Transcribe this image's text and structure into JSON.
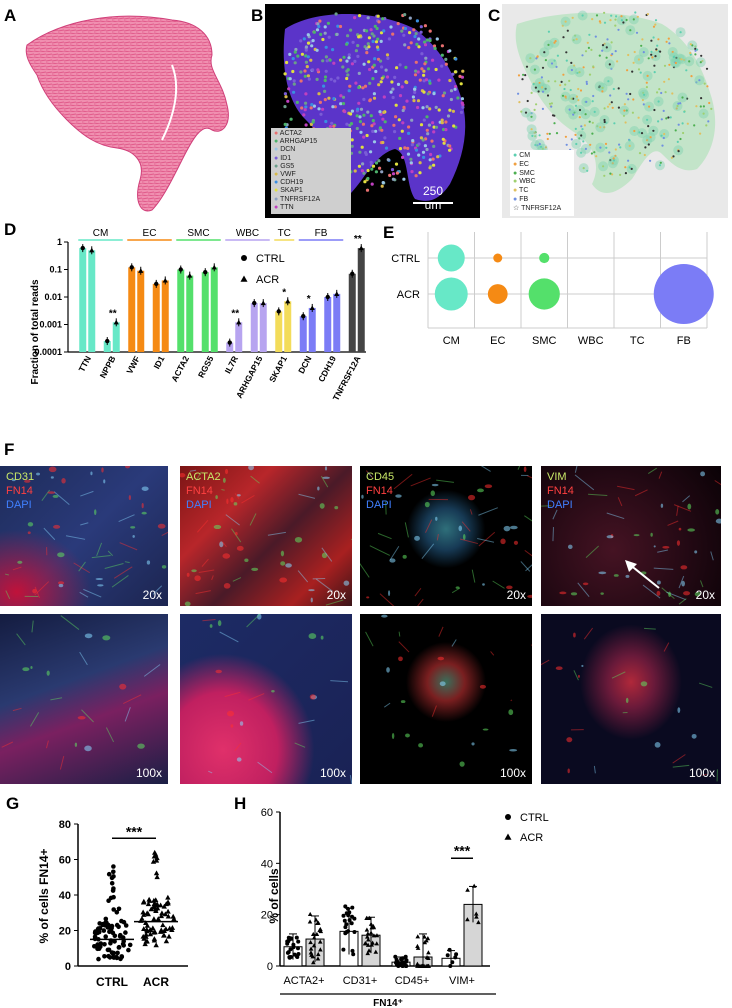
{
  "panel_labels": {
    "a": "A",
    "b": "B",
    "c": "C",
    "d": "D",
    "e": "E",
    "f": "F",
    "g": "G",
    "h": "H"
  },
  "panel_b": {
    "legend": [
      "ACTA2",
      "ARHGAP15",
      "DCN",
      "ID1",
      "GS5",
      "VWF",
      "CDH19",
      "SKAP1",
      "TNFRSF12A",
      "TTN"
    ],
    "legend_colors": [
      "#e87070",
      "#4db36b",
      "#9ac7e6",
      "#7a5cd6",
      "#6a9e8a",
      "#d6b84a",
      "#3a8ee0",
      "#e0e040",
      "#8da0c0",
      "#c040c0"
    ],
    "scale": "250 um"
  },
  "panel_c": {
    "legend": [
      "CM",
      "EC",
      "SMC",
      "WBC",
      "TC",
      "FB",
      "TNFRSF12A"
    ],
    "legend_colors": [
      "#5ccfb0",
      "#f0a040",
      "#4caf50",
      "#9fd070",
      "#e0c060",
      "#7090e0",
      "#333333"
    ]
  },
  "colors": {
    "CM": "#67e8c7",
    "EC": "#f58a14",
    "SMC": "#54e06b",
    "WBC": "#c9b6f0",
    "TC": "#f3dc5a",
    "FB": "#7b7cf6"
  },
  "chart_data": [
    {
      "id": "D",
      "type": "bar",
      "ylabel": "Fraction of total reads",
      "yscale": "log",
      "ylim": [
        0.0001,
        1
      ],
      "yticks": [
        "1",
        "0.1",
        "0.01",
        "0.001",
        "0.0001"
      ],
      "groups": [
        {
          "label": "CM",
          "genes": [
            "TTN",
            "NPPB"
          ]
        },
        {
          "label": "EC",
          "genes": [
            "VWF",
            "ID1"
          ]
        },
        {
          "label": "SMC",
          "genes": [
            "ACTA2",
            "RGS5"
          ]
        },
        {
          "label": "WBC",
          "genes": [
            "IL7R",
            "ARHGAP15"
          ]
        },
        {
          "label": "TC",
          "genes": [
            "SKAP1"
          ]
        },
        {
          "label": "FB",
          "genes": [
            "DCN",
            "CDH19"
          ]
        }
      ],
      "categories": [
        "TTN",
        "NPPB",
        "VWF",
        "ID1",
        "ACTA2",
        "RGS5",
        "IL7R",
        "ARHGAP15",
        "SKAP1",
        "DCN",
        "CDH19",
        "TNFRSF12A"
      ],
      "bar_colors": [
        "#67e8c7",
        "#67e8c7",
        "#f58a14",
        "#f58a14",
        "#54e06b",
        "#54e06b",
        "#b7a4f0",
        "#b7a4f0",
        "#f3dc5a",
        "#7b7cf6",
        "#7b7cf6",
        "#444444"
      ],
      "series": [
        {
          "name": "CTRL",
          "values": [
            0.6,
            0.00025,
            0.12,
            0.03,
            0.1,
            0.08,
            0.00022,
            0.006,
            0.003,
            0.002,
            0.01,
            0.07
          ]
        },
        {
          "name": "ACR",
          "values": [
            0.5,
            0.0012,
            0.09,
            0.04,
            0.06,
            0.12,
            0.0012,
            0.006,
            0.007,
            0.004,
            0.013,
            0.6
          ]
        }
      ],
      "significance": [
        {
          "category": "NPPB",
          "label": "**"
        },
        {
          "category": "IL7R",
          "label": "**"
        },
        {
          "category": "SKAP1",
          "label": "*"
        },
        {
          "category": "DCN",
          "label": "*"
        },
        {
          "category": "TNFRSF12A",
          "label": "**"
        }
      ],
      "legend": [
        "CTRL",
        "ACR"
      ]
    },
    {
      "id": "E",
      "type": "scatter",
      "categories": [
        "CM",
        "EC",
        "SMC",
        "WBC",
        "TC",
        "FB"
      ],
      "rows": [
        "CTRL",
        "ACR"
      ],
      "points": [
        {
          "row": "CTRL",
          "col": "CM",
          "size": 0.45
        },
        {
          "row": "CTRL",
          "col": "EC",
          "size": 0.15
        },
        {
          "row": "CTRL",
          "col": "SMC",
          "size": 0.17
        },
        {
          "row": "ACR",
          "col": "CM",
          "size": 0.55
        },
        {
          "row": "ACR",
          "col": "EC",
          "size": 0.33
        },
        {
          "row": "ACR",
          "col": "SMC",
          "size": 0.52
        },
        {
          "row": "ACR",
          "col": "FB",
          "size": 1.0
        }
      ]
    },
    {
      "id": "G",
      "type": "scatter",
      "ylabel": "% of cells FN14+",
      "ylim": [
        0,
        80
      ],
      "yticks": [
        "0",
        "20",
        "40",
        "60",
        "80"
      ],
      "categories": [
        "CTRL",
        "ACR"
      ],
      "medians": [
        15,
        25
      ],
      "significance": "***",
      "ctrl_n": 90,
      "acr_n": 80
    },
    {
      "id": "H",
      "type": "bar",
      "ylabel": "% of cells",
      "ylim": [
        0,
        60
      ],
      "yticks": [
        "0",
        "20",
        "40",
        "60"
      ],
      "categories": [
        "ACTA2+",
        "CD31+",
        "CD45+",
        "VIM+"
      ],
      "xgroup_label": "FN14⁺",
      "series": [
        {
          "name": "CTRL",
          "values": [
            7.5,
            13.5,
            1.5,
            3.0
          ],
          "sd": [
            5,
            9,
            2,
            3
          ]
        },
        {
          "name": "ACR",
          "values": [
            10.5,
            12.0,
            3.5,
            24.0
          ],
          "sd": [
            9,
            7,
            9,
            7
          ]
        }
      ],
      "significance": {
        "category": "VIM+",
        "label": "***"
      },
      "legend": [
        "CTRL",
        "ACR"
      ]
    }
  ],
  "panel_f": {
    "top": [
      {
        "lines": [
          "CD31",
          "FN14",
          "DAPI"
        ],
        "line_colors": [
          "#c8e868",
          "#ff4040",
          "#4080ff"
        ],
        "mag": "20x"
      },
      {
        "lines": [
          "ACTA2",
          "FN14",
          "DAPI"
        ],
        "line_colors": [
          "#c8e868",
          "#ff4040",
          "#4080ff"
        ],
        "mag": "20x"
      },
      {
        "lines": [
          "CD45",
          "FN14",
          "DAPI"
        ],
        "line_colors": [
          "#c8e868",
          "#ff4040",
          "#4080ff"
        ],
        "mag": "20x"
      },
      {
        "lines": [
          "VIM",
          "FN14",
          "DAPI"
        ],
        "line_colors": [
          "#c8e868",
          "#ff4040",
          "#4080ff"
        ],
        "mag": "20x"
      }
    ],
    "bottom": [
      {
        "mag": "100x"
      },
      {
        "mag": "100x"
      },
      {
        "mag": "100x"
      },
      {
        "mag": "100x"
      }
    ]
  }
}
